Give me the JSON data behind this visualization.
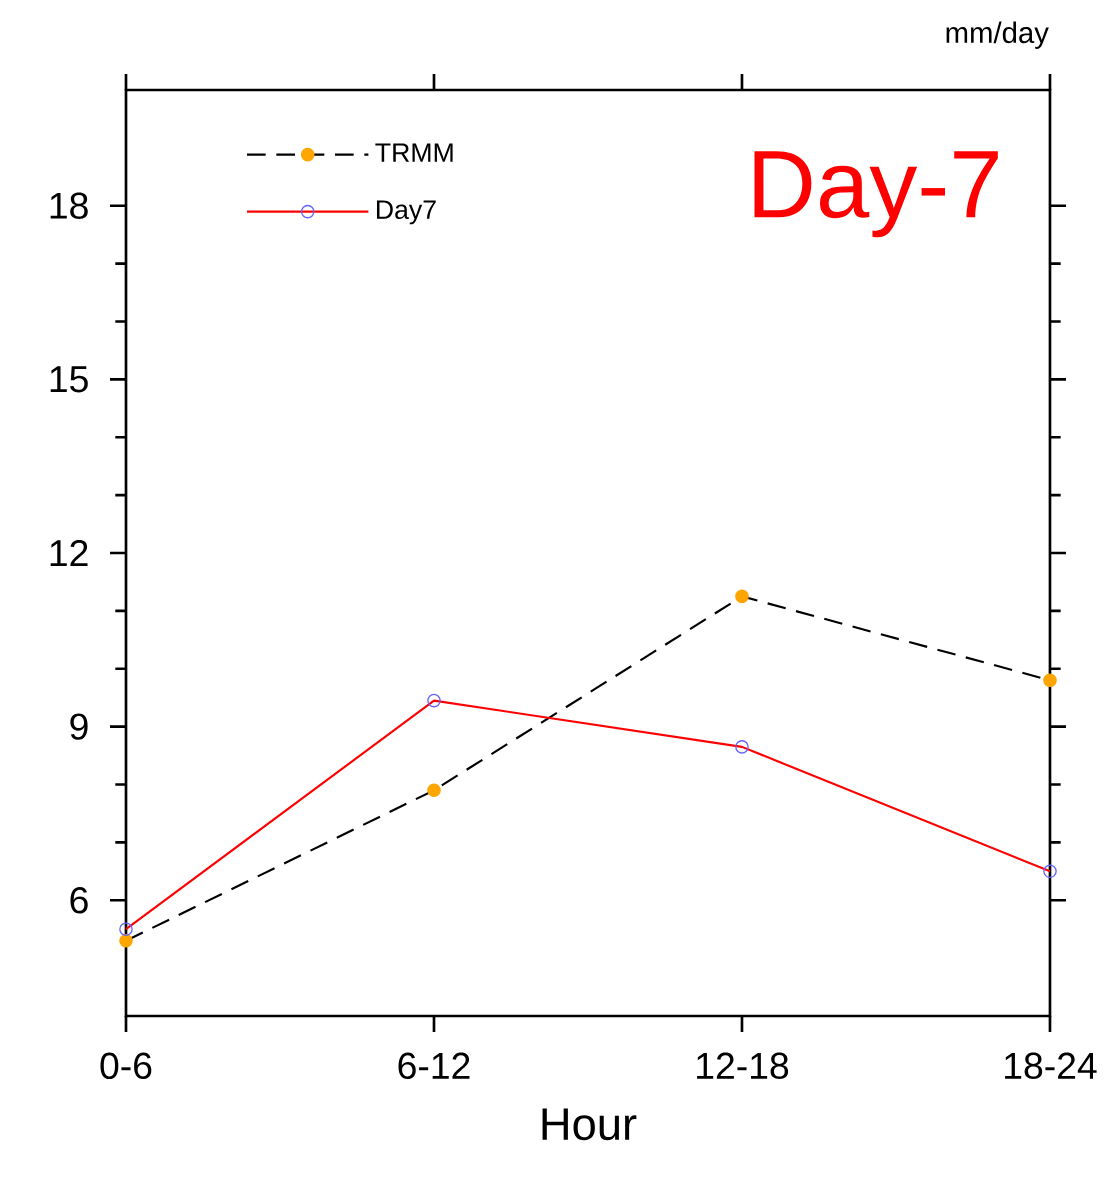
{
  "chart_data": {
    "type": "line",
    "xlabel": "Hour",
    "categories": [
      "0-6",
      "6-12",
      "12-18",
      "18-24"
    ],
    "series": [
      {
        "name": "TRMM",
        "color": "#000000",
        "line_style": "dashed",
        "marker": "circle",
        "values": [
          5.3,
          7.9,
          11.25,
          9.8
        ]
      },
      {
        "name": "Day7",
        "color": "#ff0000",
        "line_style": "solid",
        "marker": "circle",
        "values": [
          5.5,
          9.45,
          8.65,
          6.5
        ]
      }
    ],
    "ylim": [
      4,
      20
    ],
    "yticks": [
      6,
      9,
      12,
      15,
      18
    ],
    "legend": "top left",
    "grid": false,
    "annotations": [
      "Day-7",
      "mm/day"
    ]
  }
}
